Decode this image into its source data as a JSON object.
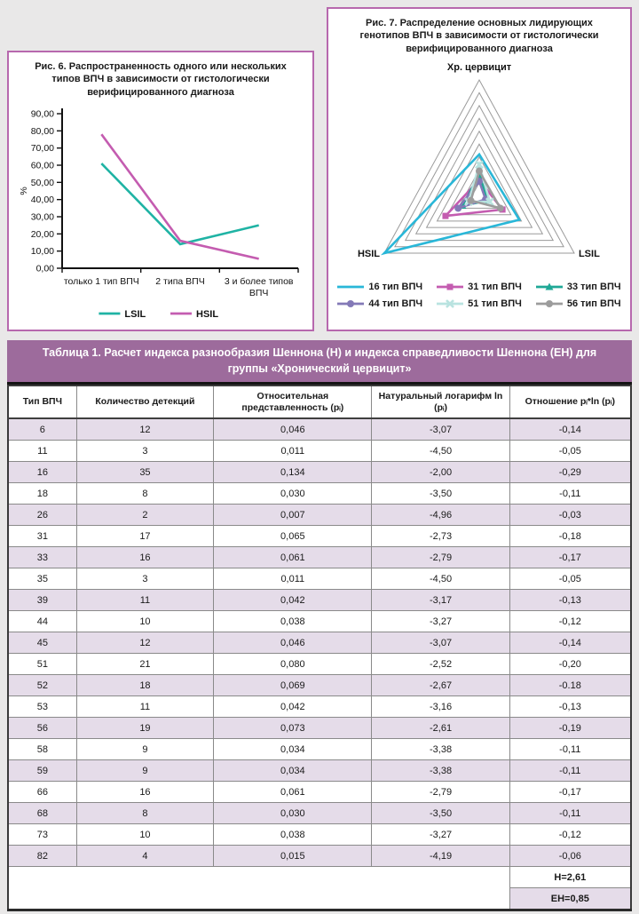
{
  "colors": {
    "panel_border": "#b768ae",
    "table_title_bg": "#9d6b9c",
    "row_alt_bg": "#e5dce9",
    "grid_gray": "#9a9a9a",
    "lsil_teal": "#1fb3a4",
    "hsil_magenta": "#c45cb0",
    "cyan_16": "#29b7d8"
  },
  "chart_data": [
    {
      "type": "line",
      "title": "Рис. 6. Распространенность одного или нескольких типов ВПЧ в зависимости от гистологически верифицированного диагноза",
      "categories": [
        "только 1 тип ВПЧ",
        "2 типа ВПЧ",
        "3 и более типов ВПЧ"
      ],
      "series": [
        {
          "name": "LSIL",
          "color": "#1fb3a4",
          "values": [
            61,
            14,
            25
          ]
        },
        {
          "name": "HSIL",
          "color": "#c45cb0",
          "values": [
            78,
            16,
            5.5
          ]
        }
      ],
      "ylabel": "%",
      "ylim": [
        0,
        90
      ],
      "ytick_step": 10,
      "axis_color": "#111111",
      "legend_position": "bottom"
    },
    {
      "type": "radar",
      "title": "Рис. 7. Распределение основных лидирующих генотипов ВПЧ в зависимости от гистологически верифицированного диагноза",
      "axes": [
        "Хр. цервицит",
        "LSIL",
        "HSIL"
      ],
      "rings": 9,
      "max": 45,
      "grid_color": "#9a9a9a",
      "series": [
        {
          "name": "16 тип ВПЧ",
          "color": "#29b7d8",
          "marker": "none",
          "values": [
            16,
            19,
            45
          ]
        },
        {
          "name": "31 тип ВПЧ",
          "color": "#c45cb0",
          "marker": "square",
          "values": [
            6,
            11,
            16
          ]
        },
        {
          "name": "33 тип ВПЧ",
          "color": "#1fa896",
          "marker": "triangle",
          "values": [
            8,
            4,
            8
          ]
        },
        {
          "name": "44 тип ВПЧ",
          "color": "#8379b7",
          "marker": "circle",
          "values": [
            5.5,
            3,
            10
          ]
        },
        {
          "name": "51 тип ВПЧ",
          "color": "#b9e3e0",
          "marker": "x",
          "values": [
            12,
            5,
            5
          ]
        },
        {
          "name": "56 тип ВПЧ",
          "color": "#9c9c9c",
          "marker": "circle",
          "values": [
            9.5,
            10,
            4
          ]
        }
      ]
    }
  ],
  "table": {
    "title": "Таблица 1. Расчет индекса разнообразия Шеннона (Н) и индекса справедливости Шеннона (ЕН) для группы «Хронический цервицит»",
    "columns": [
      "Тип ВПЧ",
      "Количество детекций",
      "Относительная представленность (pᵢ)",
      "Натуральный логарифм ln (pᵢ)",
      "Отношение pᵢ*ln (pᵢ)"
    ],
    "rows": [
      [
        "6",
        "12",
        "0,046",
        "-3,07",
        "-0,14"
      ],
      [
        "11",
        "3",
        "0,011",
        "-4,50",
        "-0,05"
      ],
      [
        "16",
        "35",
        "0,134",
        "-2,00",
        "-0,29"
      ],
      [
        "18",
        "8",
        "0,030",
        "-3,50",
        "-0,11"
      ],
      [
        "26",
        "2",
        "0,007",
        "-4,96",
        "-0,03"
      ],
      [
        "31",
        "17",
        "0,065",
        "-2,73",
        "-0,18"
      ],
      [
        "33",
        "16",
        "0,061",
        "-2,79",
        "-0,17"
      ],
      [
        "35",
        "3",
        "0,011",
        "-4,50",
        "-0,05"
      ],
      [
        "39",
        "11",
        "0,042",
        "-3,17",
        "-0,13"
      ],
      [
        "44",
        "10",
        "0,038",
        "-3,27",
        "-0,12"
      ],
      [
        "45",
        "12",
        "0,046",
        "-3,07",
        "-0,14"
      ],
      [
        "51",
        "21",
        "0,080",
        "-2,52",
        "-0,20"
      ],
      [
        "52",
        "18",
        "0,069",
        "-2,67",
        "-0.18"
      ],
      [
        "53",
        "11",
        "0,042",
        "-3,16",
        "-0,13"
      ],
      [
        "56",
        "19",
        "0,073",
        "-2,61",
        "-0,19"
      ],
      [
        "58",
        "9",
        "0,034",
        "-3,38",
        "-0,11"
      ],
      [
        "59",
        "9",
        "0,034",
        "-3,38",
        "-0,11"
      ],
      [
        "66",
        "16",
        "0,061",
        "-2,79",
        "-0,17"
      ],
      [
        "68",
        "8",
        "0,030",
        "-3,50",
        "-0,11"
      ],
      [
        "73",
        "10",
        "0,038",
        "-3,27",
        "-0,12"
      ],
      [
        "82",
        "4",
        "0,015",
        "-4,19",
        "-0,06"
      ]
    ],
    "summary": {
      "h": "Н=2,61",
      "eh": "ЕН=0,85"
    }
  }
}
